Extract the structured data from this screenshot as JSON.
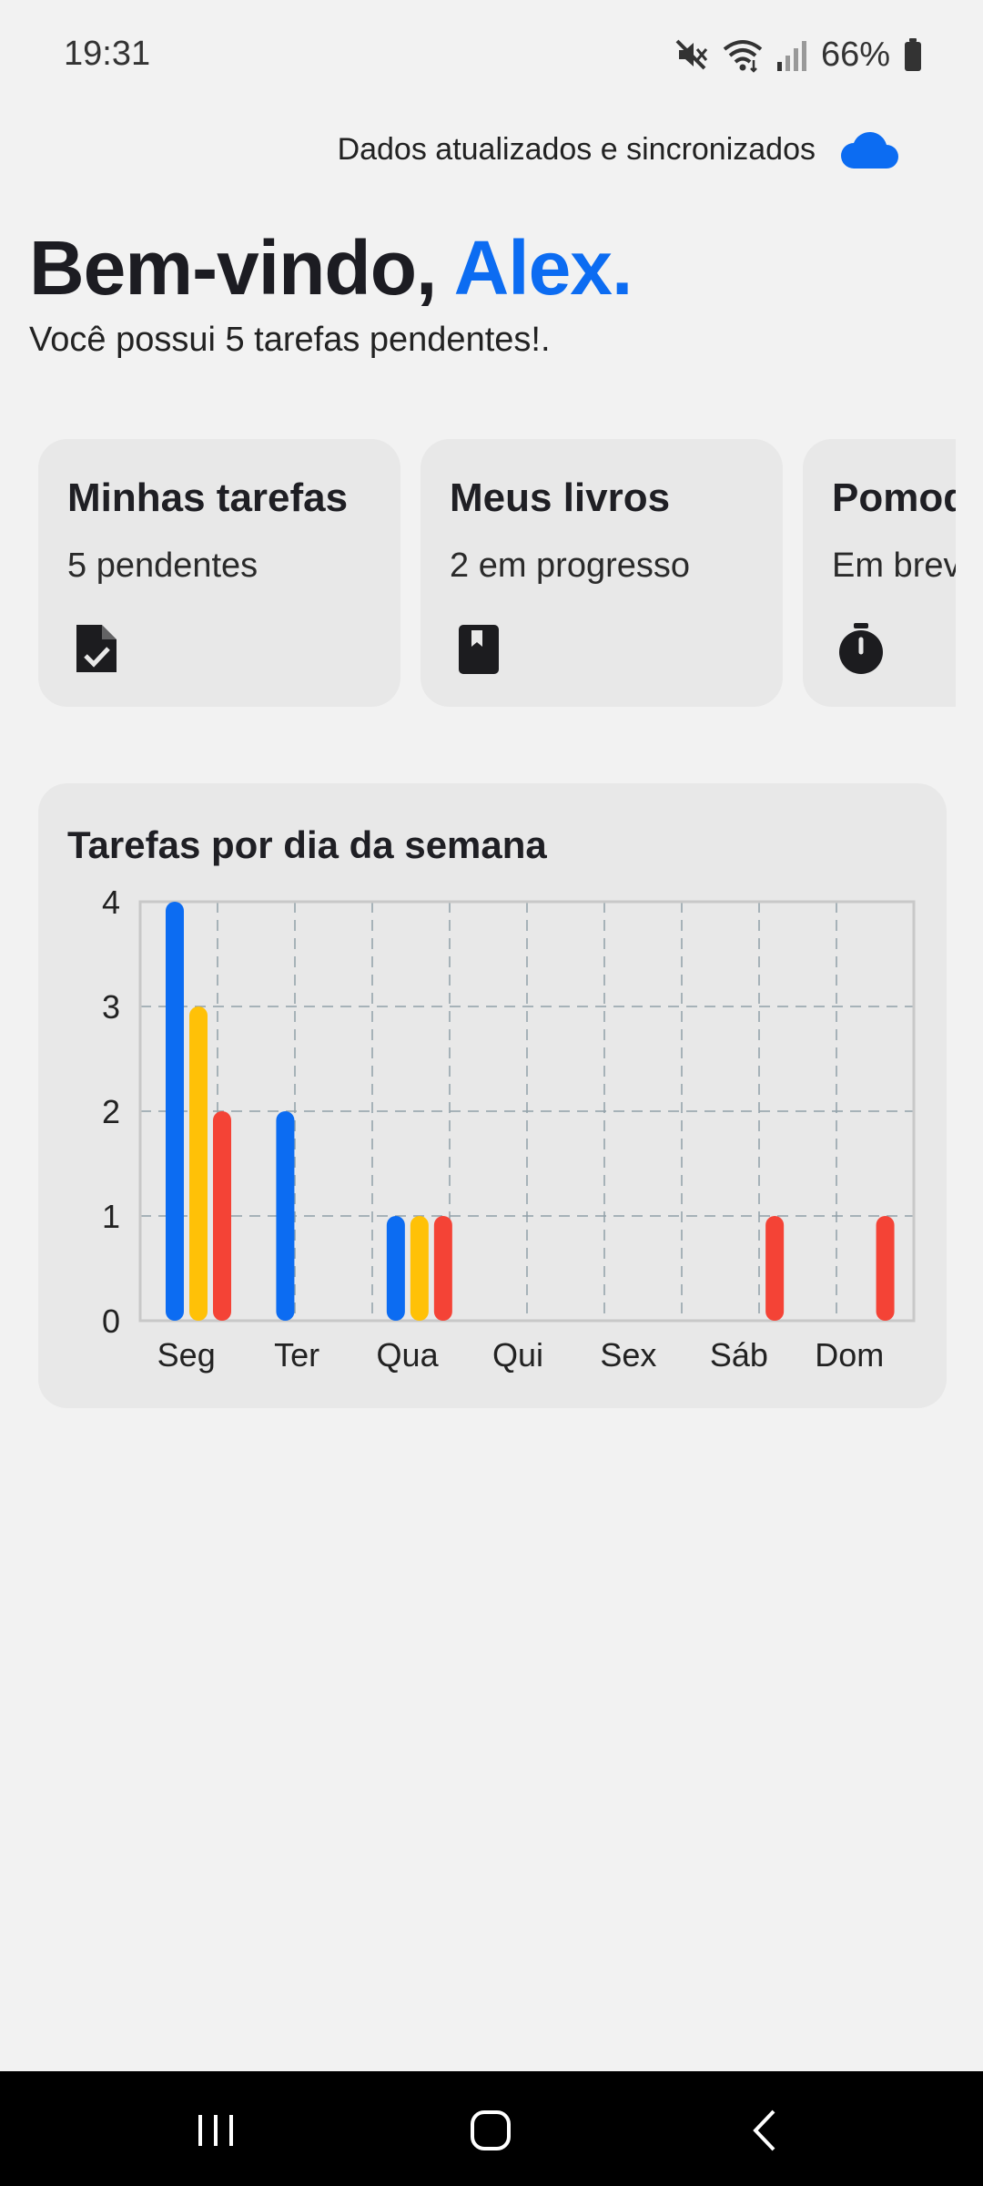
{
  "status_bar": {
    "time": "19:31",
    "battery_percent": "66%",
    "icons": [
      "mute-icon",
      "wifi-icon",
      "signal-icon",
      "battery-icon"
    ]
  },
  "sync": {
    "text": "Dados atualizados e sincronizados",
    "icon": "cloud-icon",
    "icon_color": "#0c6cf2"
  },
  "greeting": {
    "prefix": "Bem-vindo, ",
    "name": "Alex.",
    "subtitle": "Você possui 5 tarefas pendentes!."
  },
  "cards": [
    {
      "title": "Minhas tarefas",
      "subtitle": "5 pendentes",
      "icon": "task-file-check-icon"
    },
    {
      "title": "Meus livros",
      "subtitle": "2 em progresso",
      "icon": "book-icon"
    },
    {
      "title": "Pomodoro",
      "subtitle": "Em breve",
      "icon": "stopwatch-icon"
    }
  ],
  "chart_data": {
    "type": "bar",
    "title": "Tarefas por dia da semana",
    "categories": [
      "Seg",
      "Ter",
      "Qua",
      "Qui",
      "Sex",
      "Sáb",
      "Dom"
    ],
    "series": [
      {
        "color": "#0c6cf2",
        "values": [
          4,
          2,
          1,
          0,
          0,
          0,
          0
        ]
      },
      {
        "color": "#ffc107",
        "values": [
          3,
          0,
          1,
          0,
          0,
          0,
          0
        ]
      },
      {
        "color": "#f44336",
        "values": [
          2,
          0,
          1,
          0,
          0,
          1,
          1
        ]
      }
    ],
    "ylim": [
      0,
      4
    ],
    "y_ticks": [
      0,
      1,
      2,
      3,
      4
    ],
    "grid": true
  },
  "nav_bar": {
    "buttons": [
      "recent-apps-icon",
      "home-icon",
      "back-icon"
    ]
  }
}
